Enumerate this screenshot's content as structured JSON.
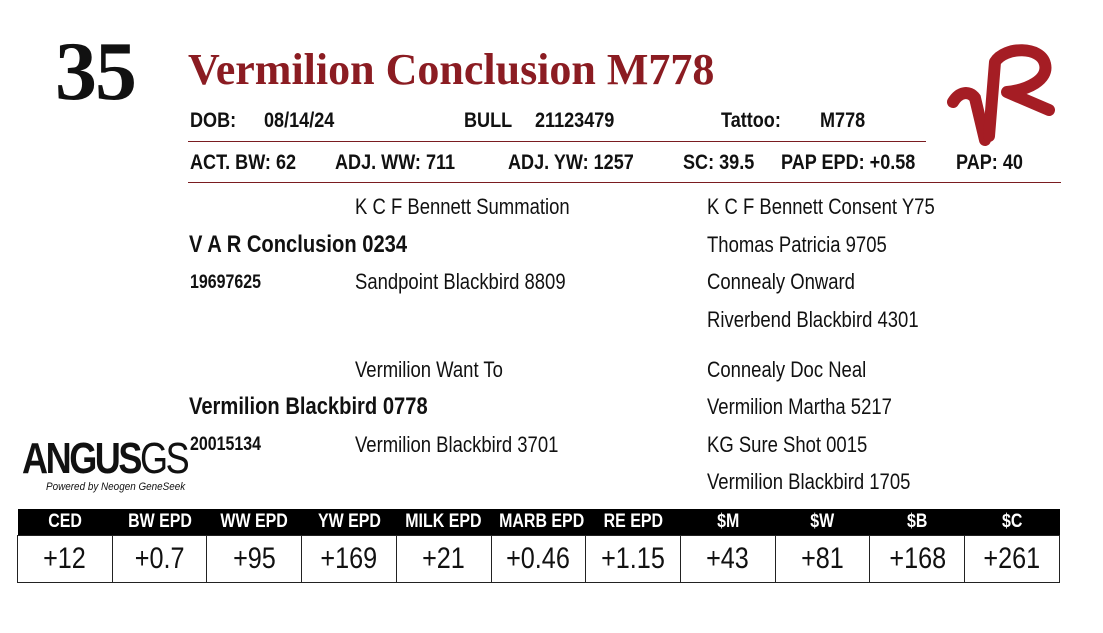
{
  "lot_number": "35",
  "animal_name": "Vermilion Conclusion M778",
  "info_row": {
    "dob_label": "DOB:",
    "dob": "08/14/24",
    "sex_label": "BULL",
    "registration": "21123479",
    "tattoo_label": "Tattoo:",
    "tattoo": "M778"
  },
  "measures_row": {
    "act_bw": "ACT. BW: 62",
    "adj_ww": "ADJ. WW: 711",
    "adj_yw": "ADJ. YW: 1257",
    "sc": "SC: 39.5",
    "pap_epd": "PAP EPD: +0.58",
    "pap": "PAP: 40"
  },
  "pedigree": {
    "sire": "V A R Conclusion 0234",
    "sire_reg": "19697625",
    "sire_sire": "K C F Bennett Summation",
    "sire_dam": "Sandpoint Blackbird 8809",
    "sss": "K C F Bennett Consent Y75",
    "ssd": "Thomas Patricia 9705",
    "sds": "Connealy Onward",
    "sdd": "Riverbend Blackbird 4301",
    "dam": "Vermilion Blackbird 0778",
    "dam_reg": "20015134",
    "dam_sire": "Vermilion Want To",
    "dam_dam": "Vermilion Blackbird 3701",
    "dss": "Connealy Doc Neal",
    "dsd": "Vermilion Martha 5217",
    "dds": "KG Sure Shot 0015",
    "ddd": "Vermilion Blackbird 1705"
  },
  "angus_logo": {
    "word_main": "ANGUS",
    "word_suffix": "GS",
    "tagline": "Powered by Neogen GeneSeek"
  },
  "brand_logo": {
    "text": "VR",
    "color": "#a51d24"
  },
  "epd_headers": [
    "CED",
    "BW EPD",
    "WW EPD",
    "YW EPD",
    "MILK EPD",
    "MARB EPD",
    "RE EPD",
    "$M",
    "$W",
    "$B",
    "$C"
  ],
  "epd_values": [
    "+12",
    "+0.7",
    "+95",
    "+169",
    "+21",
    "+0.46",
    "+1.15",
    "+43",
    "+81",
    "+168",
    "+261"
  ],
  "colors": {
    "title": "#8b1c22",
    "rule": "#7a1c20",
    "table_header_bg": "#000000"
  }
}
